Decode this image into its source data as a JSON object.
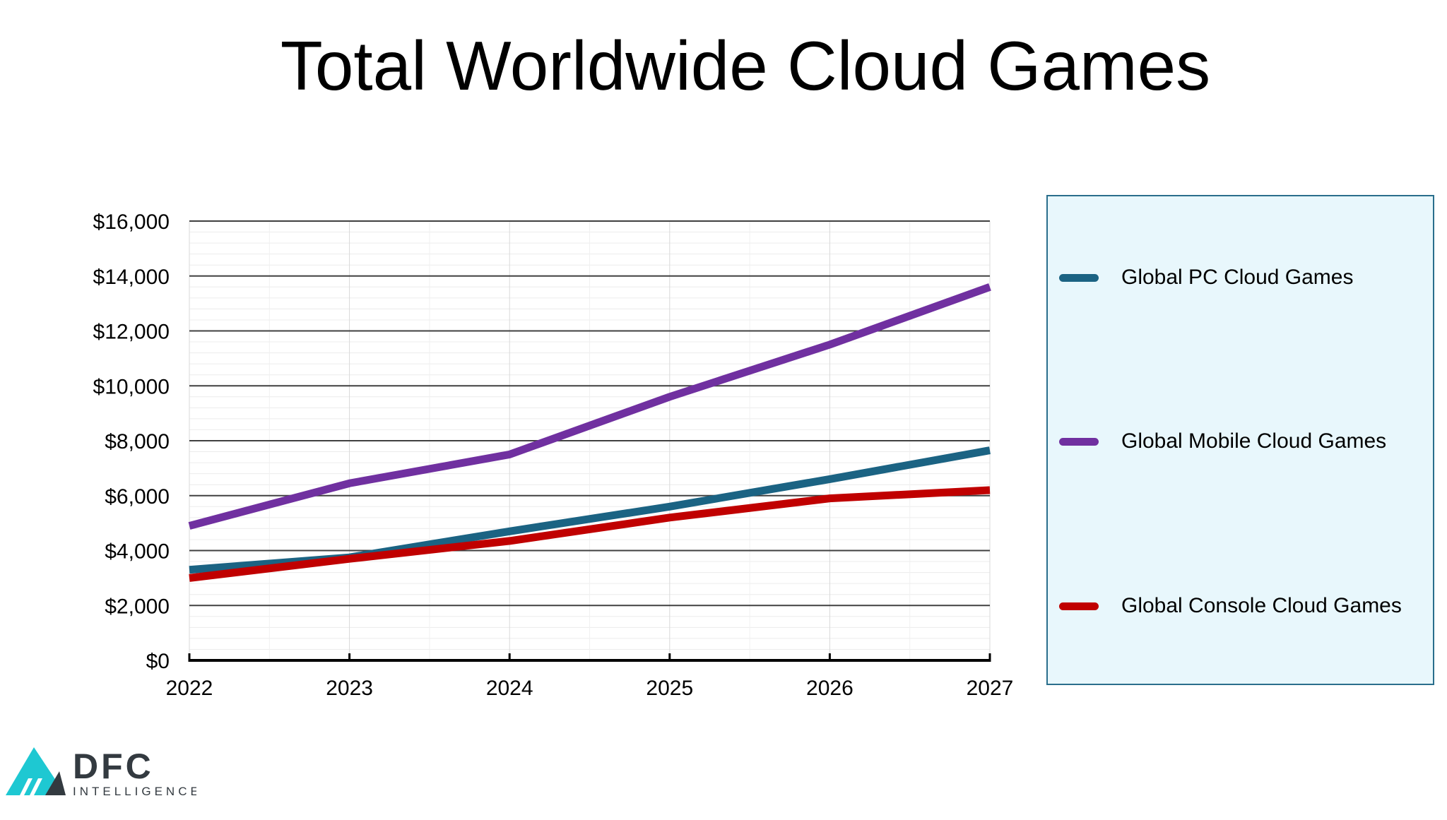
{
  "title": "Total Worldwide Cloud Games",
  "chart_data": {
    "type": "line",
    "title": "Total Worldwide Cloud Games",
    "x": [
      "2022",
      "2023",
      "2024",
      "2025",
      "2026",
      "2027"
    ],
    "ylim": [
      0,
      16000
    ],
    "yticks": [
      "$0",
      "$2,000",
      "$4,000",
      "$6,000",
      "$8,000",
      "$10,000",
      "$12,000",
      "$14,000",
      "$16,000"
    ],
    "grid": true,
    "legend_position": "right",
    "series": [
      {
        "name": "Global PC Cloud Games",
        "color": "#1b6383",
        "values": [
          3300,
          3750,
          4700,
          5600,
          6600,
          7650
        ]
      },
      {
        "name": "Global Mobile Cloud Games",
        "color": "#7030a0",
        "values": [
          4900,
          6450,
          7500,
          9600,
          11500,
          13600
        ]
      },
      {
        "name": "Global Console Cloud Games",
        "color": "#c00000",
        "values": [
          3000,
          3700,
          4350,
          5200,
          5900,
          6200
        ]
      }
    ]
  },
  "logo": {
    "name": "DFC",
    "subtitle": "INTELLIGENCE",
    "colors": {
      "teal": "#1ec8d2",
      "dark": "#333a40"
    }
  }
}
